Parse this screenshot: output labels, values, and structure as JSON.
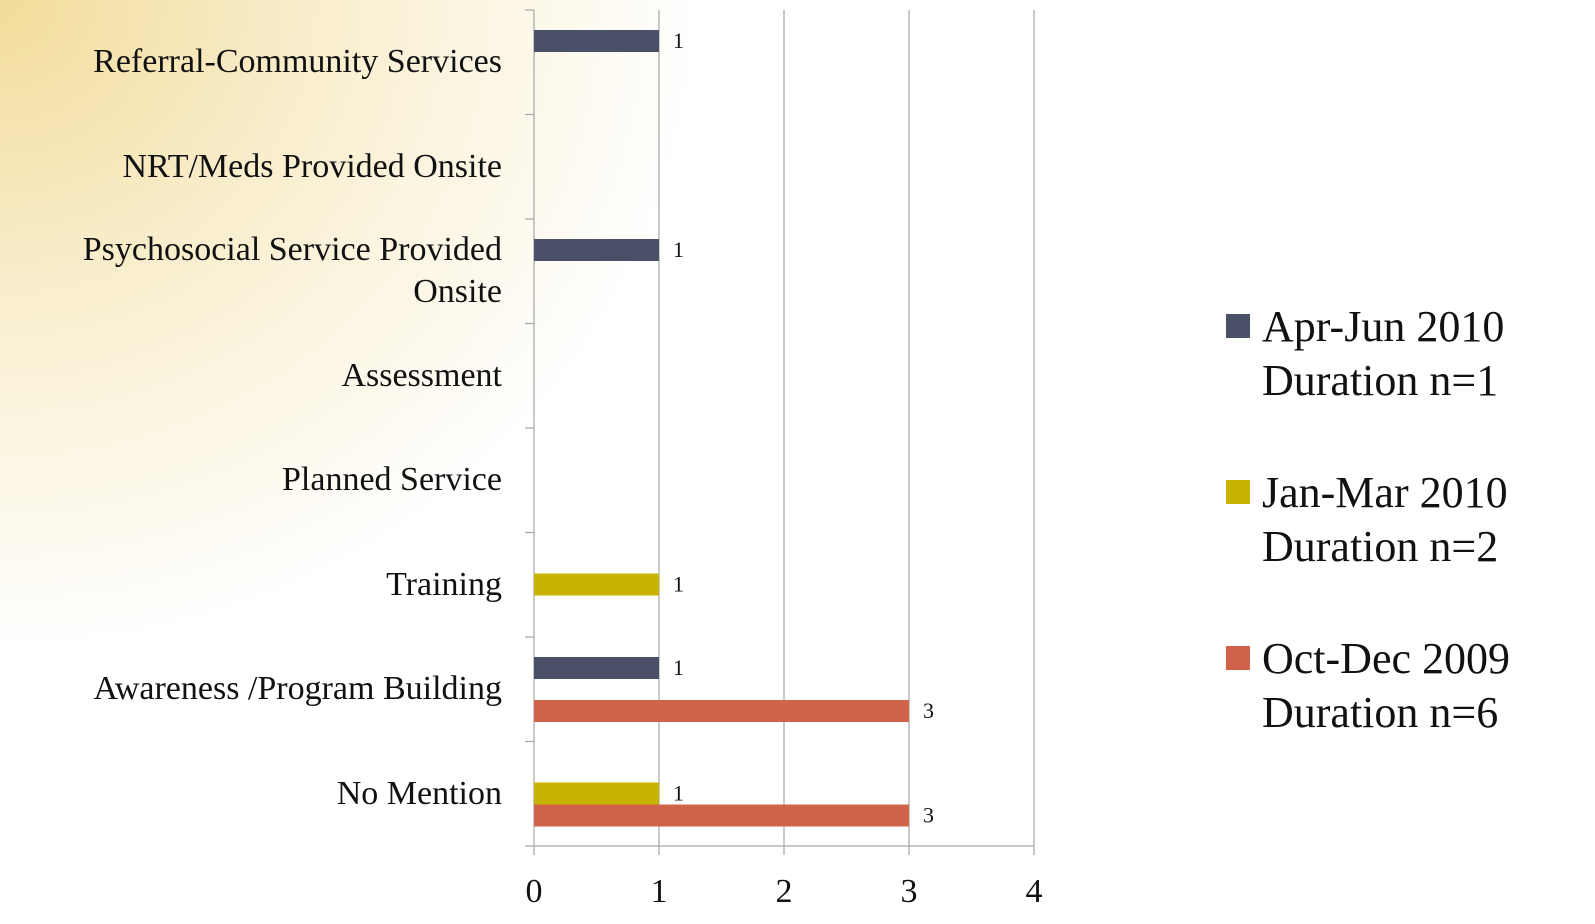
{
  "chart_data": {
    "type": "bar",
    "orientation": "horizontal",
    "categories": [
      "Referral-Community Services",
      "NRT/Meds Provided Onsite",
      "Psychosocial Service Provided Onsite",
      "Assessment",
      "Planned Service",
      "Training",
      "Awareness /Program Building",
      "No Mention"
    ],
    "series": [
      {
        "name": "Apr-Jun 2010 Duration n=1",
        "color": "#4a5068",
        "values": [
          1,
          null,
          1,
          null,
          null,
          null,
          1,
          null
        ]
      },
      {
        "name": "Jan-Mar 2010 Duration n=2",
        "color": "#c8b400",
        "values": [
          null,
          null,
          null,
          null,
          null,
          1,
          null,
          1
        ]
      },
      {
        "name": "Oct-Dec 2009 Duration n=6",
        "color": "#d0644a",
        "values": [
          null,
          null,
          null,
          null,
          null,
          null,
          3,
          3
        ]
      }
    ],
    "xlim": [
      0,
      4
    ],
    "xticks": [
      0,
      1,
      2,
      3,
      4
    ],
    "grid": true,
    "legend": "right"
  }
}
